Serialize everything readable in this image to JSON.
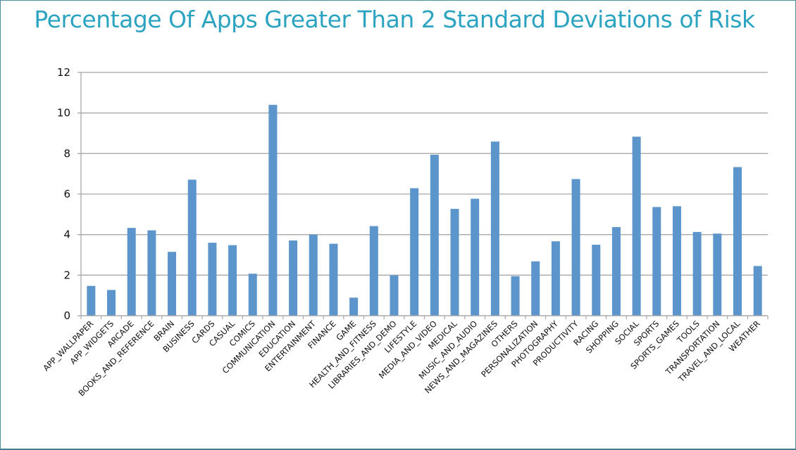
{
  "chart_data": {
    "type": "bar",
    "title": "Percentage Of Apps Greater Than 2 Standard Deviations of Risk",
    "xlabel": "",
    "ylabel": "",
    "ylim": [
      0,
      12
    ],
    "yticks": [
      0,
      2,
      4,
      6,
      8,
      10,
      12
    ],
    "grid": true,
    "legend": "none",
    "bar_color": "#5b95cb",
    "categories": [
      "APP_WALLPAPER",
      "APP_WIDGETS",
      "ARCADE",
      "BOOKS_AND_REFERENCE",
      "BRAIN",
      "BUSINESS",
      "CARDS",
      "CASUAL",
      "COMICS",
      "COMMUNICATION",
      "EDUCATION",
      "ENTERTAINMENT",
      "FINANCE",
      "GAME",
      "HEALTH_AND_FITNESS",
      "LIBRARIES_AND_DEMO",
      "LIFESTYLE",
      "MEDIA_AND_VIDEO",
      "MEDICAL",
      "MUSIC_AND_AUDIO",
      "NEWS_AND_MAGAZINES",
      "OTHERS",
      "PERSONALIZATION",
      "PHOTOGRAPHY",
      "PRODUCTIVITY",
      "RACING",
      "SHOPPING",
      "SOCIAL",
      "SPORTS",
      "SPORTS_GAMES",
      "TOOLS",
      "TRANSPORTATION",
      "TRAVEL_AND_LOCAL",
      "WEATHER"
    ],
    "values": [
      1.47,
      1.27,
      4.33,
      4.21,
      3.15,
      6.71,
      3.6,
      3.48,
      2.07,
      10.4,
      3.71,
      4.0,
      3.55,
      0.89,
      4.42,
      1.99,
      6.29,
      7.94,
      5.27,
      5.77,
      8.59,
      1.95,
      2.68,
      3.67,
      6.74,
      3.5,
      4.37,
      8.83,
      5.36,
      5.4,
      4.13,
      4.05,
      7.33,
      2.45
    ]
  }
}
